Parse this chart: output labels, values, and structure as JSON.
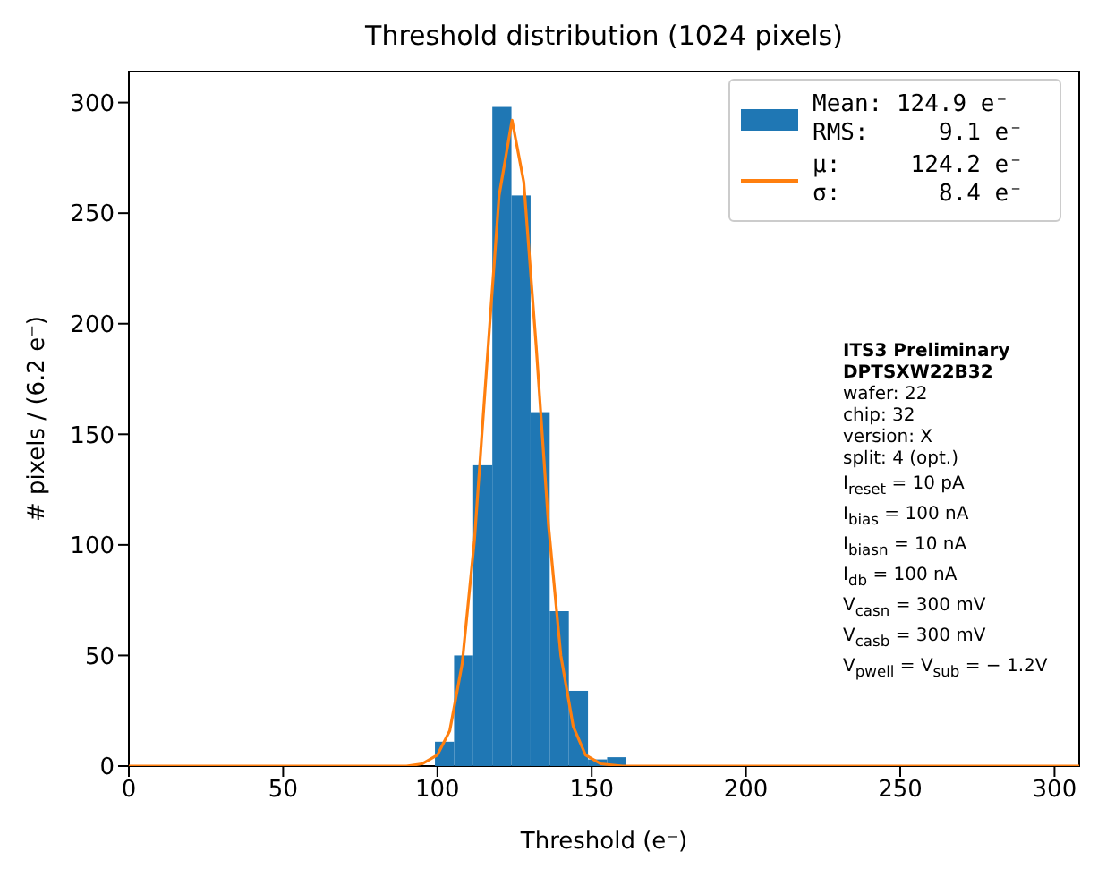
{
  "chart_data": {
    "type": "histogram",
    "title": "Threshold distribution (1024 pixels)",
    "xlabel": "Threshold (e⁻)",
    "ylabel": "# pixels / (6.2 e⁻)",
    "bins": [
      99.2,
      105.4,
      111.6,
      117.8,
      124.0,
      130.2,
      136.4,
      142.6,
      148.8,
      155.0,
      161.2
    ],
    "series": [
      {
        "name": "Mean: 124.9 e⁻\nRMS:     9.1 e⁻",
        "color": "#1f77b4",
        "values": [
          11,
          50,
          136,
          298,
          258,
          160,
          70,
          34,
          3,
          4
        ]
      },
      {
        "type": "line",
        "name": "μ:     124.2 e⁻\nσ:       8.4 e⁻",
        "color": "#ff7f0e",
        "x": [
          0,
          90,
          95,
          100,
          104,
          108,
          112,
          116,
          120,
          124.2,
          128,
          132,
          136,
          140,
          144,
          148,
          153,
          160,
          308
        ],
        "values": [
          0,
          0,
          1,
          5,
          16,
          46,
          102,
          181,
          258,
          292,
          264,
          190,
          109,
          50,
          18,
          5,
          1,
          0,
          0
        ]
      }
    ],
    "xlim": [
      0,
      308
    ],
    "xticks": [
      0,
      50,
      100,
      150,
      200,
      250,
      300
    ],
    "ylim": [
      0,
      314
    ],
    "yticks": [
      0,
      50,
      100,
      150,
      200,
      250,
      300
    ],
    "grid": false,
    "legend": "top right",
    "annotations": [
      "ITS3 Preliminary",
      "DPTSXW22B32",
      "wafer: 22",
      "chip: 32",
      "version: X",
      "split:  4 (opt.)",
      "I$_{reset}$ = 10 pA",
      "I$_{bias}$ = 100 nA",
      "I$_{biasn}$ = 10 nA",
      "I$_{db}$ = 100 nA",
      "V$_{casn}$ = 300 mV",
      "V$_{casb}$ = 300 mV",
      "V$_{pwell}$ = V$_{sub}$ = − 1.2V"
    ]
  }
}
